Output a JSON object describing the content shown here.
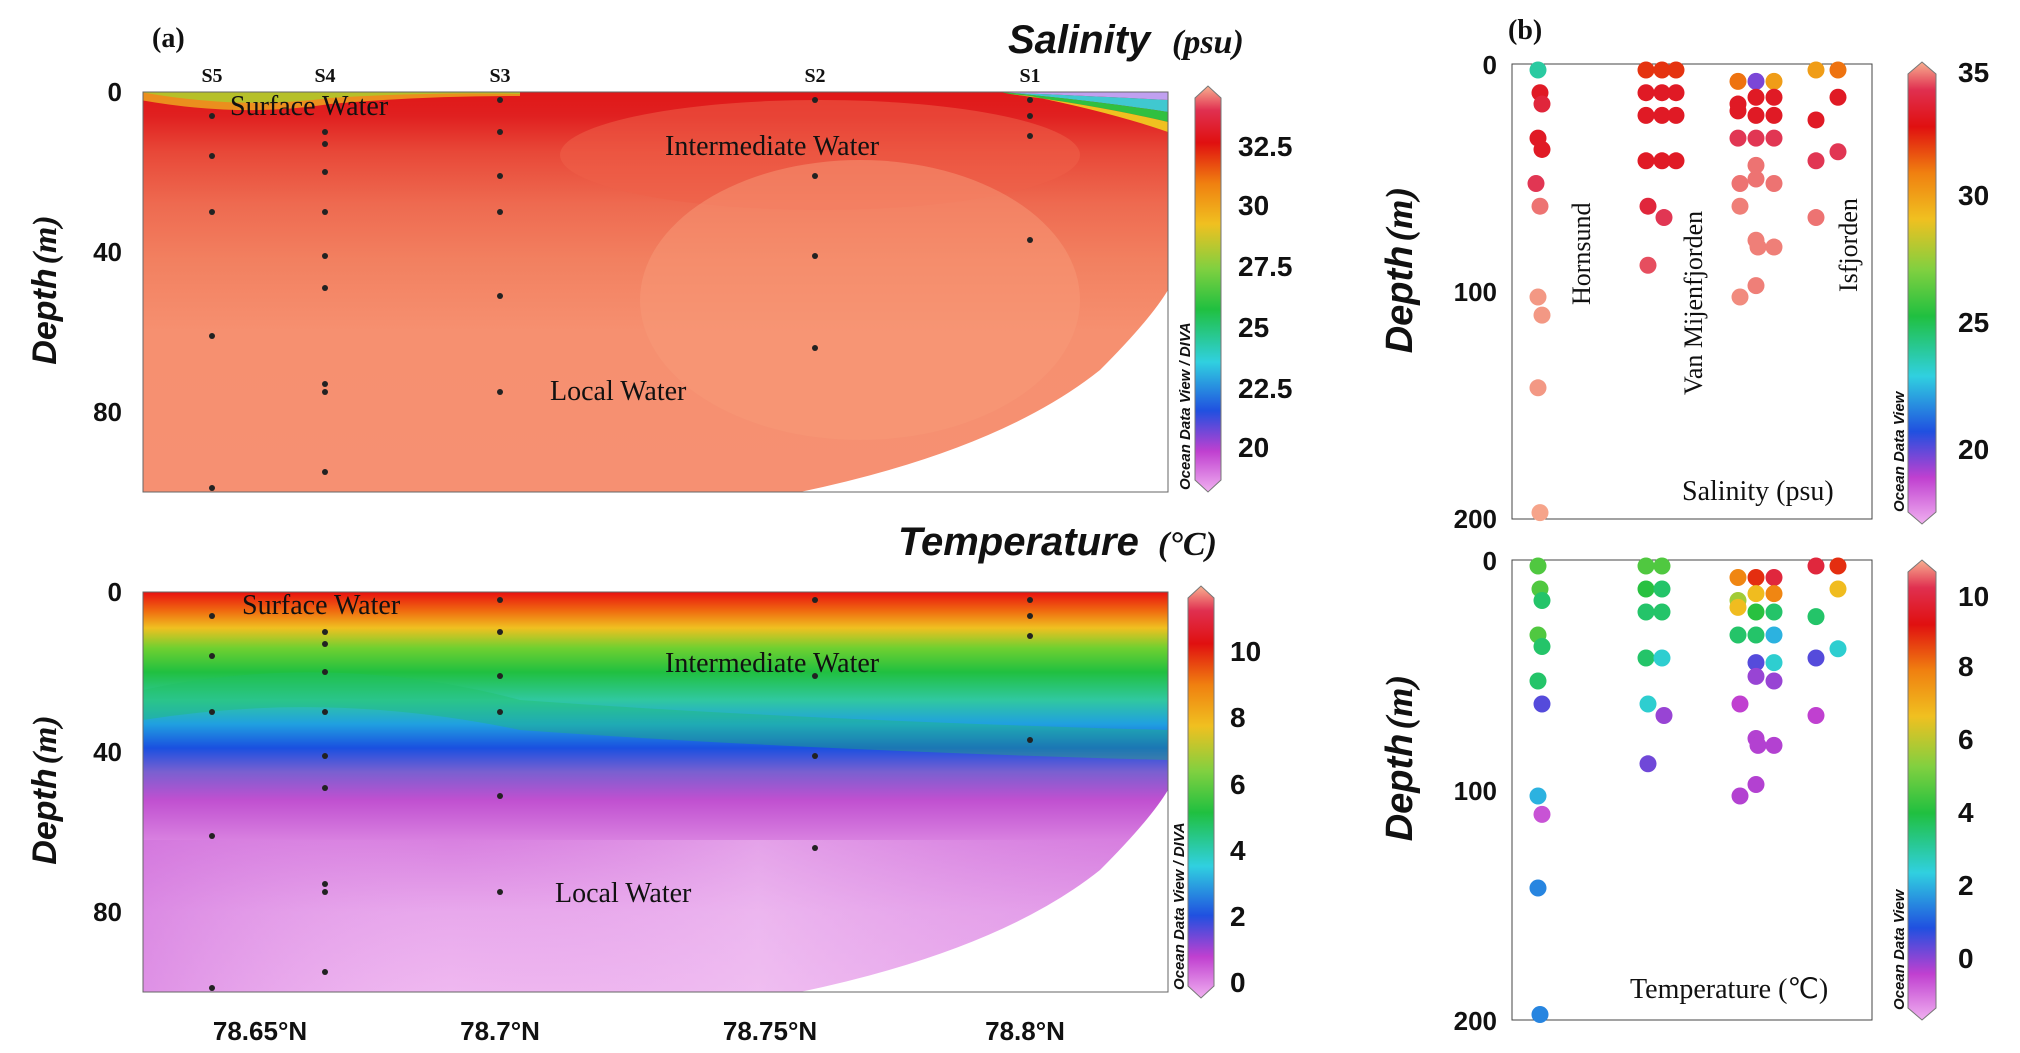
{
  "panel_a_label": "(a)",
  "panel_b_label": "(b)",
  "chart_data": [
    {
      "id": "a-salinity",
      "type": "section-contour",
      "title": "Salinity",
      "title_unit": "(psu)",
      "ylabel": "Depth",
      "ylabel_unit": "(m)",
      "ylim": [
        100,
        0
      ],
      "yticks": [
        "0",
        "40",
        "80"
      ],
      "stations": [
        "S5",
        "S4",
        "S3",
        "S2",
        "S1"
      ],
      "water_masses": [
        "Surface Water",
        "Intermediate Water",
        "Local Water"
      ],
      "colorbar_ticks": [
        "32.5",
        "30",
        "27.5",
        "25",
        "22.5",
        "20"
      ],
      "colorbar_label": "Ocean Data View / DIVA"
    },
    {
      "id": "a-temperature",
      "type": "section-contour",
      "title": "Temperature",
      "title_unit": "(°C)",
      "ylabel": "Depth",
      "ylabel_unit": "(m)",
      "ylim": [
        100,
        0
      ],
      "yticks": [
        "0",
        "40",
        "80"
      ],
      "xticks": [
        "78.65°N",
        "78.7°N",
        "78.75°N",
        "78.8°N"
      ],
      "water_masses": [
        "Surface Water",
        "Intermediate Water",
        "Local Water"
      ],
      "colorbar_ticks": [
        "10",
        "8",
        "6",
        "4",
        "2",
        "0"
      ],
      "colorbar_label": "Ocean Data View / DIVA"
    },
    {
      "id": "b-salinity",
      "type": "scatter",
      "ylabel": "Depth",
      "ylabel_unit": "(m)",
      "ylim": [
        200,
        0
      ],
      "yticks": [
        "0",
        "100",
        "200"
      ],
      "xlabel": "Salinity  (psu)",
      "fjords": [
        "Hornsund",
        "Van Mijenfjorden",
        "Isfjorden"
      ],
      "colorbar_ticks": [
        "35",
        "30",
        "25",
        "20"
      ],
      "colorbar_label": "Ocean Data View",
      "cmin": 17.5,
      "cmax": 35
    },
    {
      "id": "b-temperature",
      "type": "scatter",
      "ylabel": "Depth",
      "ylabel_unit": "(m)",
      "ylim": [
        200,
        0
      ],
      "yticks": [
        "0",
        "100",
        "200"
      ],
      "xlabel": "Temperature (℃)",
      "colorbar_ticks": [
        "10",
        "8",
        "6",
        "4",
        "2",
        "0"
      ],
      "colorbar_label": "Ocean Data View",
      "cmin": -1,
      "cmax": 11
    }
  ]
}
